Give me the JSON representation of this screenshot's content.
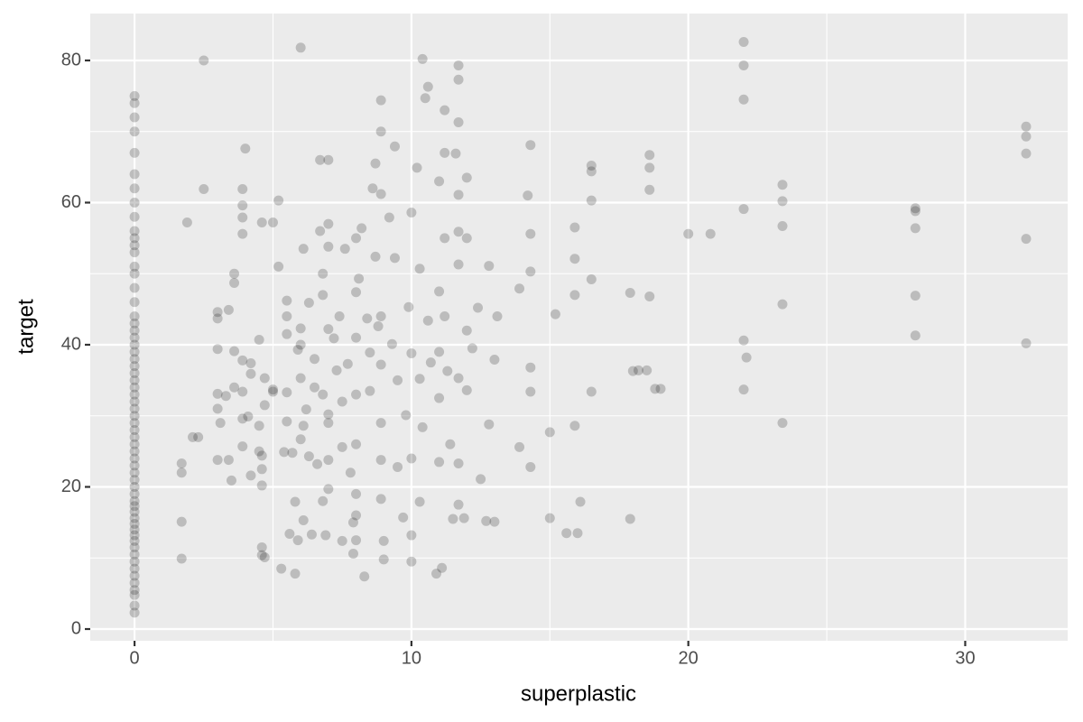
{
  "chart_data": {
    "type": "scatter",
    "x_label": "superplastic",
    "y_label": "target",
    "color": "#000000",
    "opacity": 0.2,
    "grid": true,
    "xlim": [
      -1.6,
      33.7
    ],
    "ylim": [
      -1.65,
      86.6
    ],
    "xticks": [
      0,
      10,
      20,
      30
    ],
    "yticks": [
      0,
      20,
      40,
      60,
      80
    ],
    "xminor": [
      5,
      15,
      25
    ],
    "yminor": [
      10,
      30,
      50,
      70
    ],
    "x": [
      0,
      0,
      0,
      0,
      0,
      0,
      0,
      0,
      0,
      0,
      0,
      0,
      0,
      0,
      0,
      0,
      0,
      0,
      0,
      0,
      0,
      0,
      0,
      0,
      0,
      0,
      0,
      0,
      0,
      0,
      0,
      0,
      0,
      0,
      0,
      0,
      0,
      0,
      0,
      0,
      0,
      0,
      0,
      0,
      0,
      0,
      0,
      0,
      0,
      0,
      0,
      0,
      0,
      0,
      0,
      0,
      0,
      0,
      0,
      0,
      0,
      1.7,
      1.7,
      1.7,
      1.7,
      1.9,
      2.1,
      2.3,
      2.5,
      2.5,
      3,
      3,
      3,
      3,
      3,
      3,
      3.1,
      3.3,
      3.4,
      3.4,
      3.5,
      3.6,
      3.6,
      3.6,
      3.6,
      3.9,
      3.9,
      3.9,
      3.9,
      3.9,
      3.9,
      3.9,
      3.9,
      4,
      4.1,
      4.2,
      4.2,
      4.2,
      4.5,
      4.5,
      4.5,
      4.6,
      4.6,
      4.6,
      4.6,
      4.6,
      4.6,
      4.7,
      4.7,
      4.7,
      5,
      5,
      5,
      5.2,
      5.2,
      5.3,
      5.4,
      5.5,
      5.5,
      5.5,
      5.5,
      5.5,
      5.6,
      5.7,
      5.8,
      5.8,
      5.9,
      5.9,
      6,
      6,
      6,
      6,
      6,
      6.1,
      6.1,
      6.1,
      6.2,
      6.3,
      6.3,
      6.4,
      6.5,
      6.5,
      6.6,
      6.7,
      6.7,
      6.8,
      6.8,
      6.8,
      6.8,
      6.9,
      7,
      7,
      7,
      7,
      7,
      7,
      7,
      7,
      7.2,
      7.3,
      7.4,
      7.5,
      7.5,
      7.5,
      7.6,
      7.7,
      7.8,
      7.9,
      7.9,
      8,
      8,
      8,
      8,
      8,
      8,
      8,
      8,
      8.1,
      8.2,
      8.3,
      8.4,
      8.5,
      8.5,
      8.6,
      8.7,
      8.7,
      8.8,
      8.9,
      8.9,
      8.9,
      8.9,
      8.9,
      8.9,
      8.9,
      8.9,
      9,
      9,
      9.2,
      9.3,
      9.4,
      9.4,
      9.5,
      9.5,
      9.7,
      9.8,
      9.9,
      10,
      10,
      10,
      10,
      10,
      10.2,
      10.3,
      10.3,
      10.3,
      10.4,
      10.4,
      10.5,
      10.6,
      10.6,
      10.7,
      10.9,
      11,
      11,
      11,
      11,
      11,
      11.1,
      11.2,
      11.2,
      11.2,
      11.2,
      11.3,
      11.4,
      11.5,
      11.6,
      11.7,
      11.7,
      11.7,
      11.7,
      11.7,
      11.7,
      11.7,
      11.7,
      11.7,
      11.9,
      12,
      12,
      12,
      12,
      12.2,
      12.4,
      12.5,
      12.7,
      12.8,
      12.8,
      13,
      13,
      13.1,
      13.9,
      13.9,
      14.2,
      14.3,
      14.3,
      14.3,
      14.3,
      14.3,
      14.3,
      15,
      15,
      15.2,
      15.6,
      15.9,
      15.9,
      15.9,
      15.9,
      16,
      16.1,
      16.5,
      16.5,
      16.5,
      16.5,
      16.5,
      17.9,
      17.9,
      18,
      18.2,
      18.5,
      18.6,
      18.6,
      18.6,
      18.6,
      18.8,
      19,
      20,
      20.8,
      22,
      22,
      22,
      22,
      22,
      22,
      22.1,
      23.4,
      23.4,
      23.4,
      23.4,
      23.4,
      28.2,
      28.2,
      28.2,
      28.2,
      28.2,
      32.2,
      32.2,
      32.2,
      32.2,
      32.2
    ],
    "values": [
      2.3,
      3.3,
      4.8,
      5.5,
      6.5,
      7.5,
      8.5,
      9.5,
      10.5,
      11.5,
      12.4,
      13.2,
      14,
      14.8,
      15.6,
      16.5,
      17.3,
      18,
      19,
      20,
      21,
      22,
      23,
      24,
      25,
      26,
      27,
      28,
      29,
      30,
      31,
      32,
      33,
      34,
      35,
      36,
      37,
      38,
      39,
      40,
      41,
      42,
      43,
      44,
      46,
      48,
      50,
      51,
      53,
      54,
      55,
      56,
      58,
      60,
      62,
      64,
      67,
      70,
      72,
      74,
      75,
      23.3,
      22,
      15.1,
      9.9,
      57.2,
      27,
      27,
      80,
      61.9,
      44.6,
      43.7,
      39.4,
      33.1,
      31,
      23.8,
      29,
      32.8,
      23.8,
      44.9,
      20.9,
      50,
      48.7,
      34,
      39.1,
      61.9,
      59.6,
      57.9,
      55.6,
      37.8,
      33.4,
      25.7,
      29.6,
      67.6,
      29.9,
      37.4,
      35.9,
      21.6,
      40.7,
      28.6,
      25,
      11.5,
      10.4,
      24.4,
      20.2,
      22.5,
      57.2,
      35.3,
      31.5,
      10.1,
      33.7,
      33.4,
      57.2,
      60.3,
      51,
      8.5,
      24.9,
      46.2,
      44,
      41.5,
      33.3,
      29.2,
      13.4,
      24.8,
      17.9,
      7.8,
      12.5,
      39.3,
      81.8,
      40,
      42.3,
      35.3,
      26.7,
      53.5,
      28.6,
      15.3,
      30.9,
      45.9,
      24.3,
      13.3,
      34,
      38,
      23.2,
      56,
      66,
      50,
      47,
      33,
      18,
      13.2,
      57,
      66,
      53.8,
      42.2,
      30.2,
      29,
      23.8,
      19.7,
      40.9,
      36.4,
      44,
      32,
      25.6,
      12.4,
      53.5,
      37.3,
      22,
      15,
      10.6,
      55,
      47.4,
      41,
      33,
      26,
      19,
      16,
      12.5,
      49.3,
      56.4,
      7.4,
      43.7,
      33.5,
      38.9,
      62,
      65.5,
      52.4,
      42.6,
      74.4,
      70,
      61.2,
      44,
      37.2,
      29,
      23.8,
      18.3,
      12.4,
      9.8,
      57.9,
      40.1,
      67.9,
      52.2,
      35,
      22.8,
      15.7,
      30.1,
      45.3,
      58.6,
      38.8,
      24,
      13.2,
      9.5,
      64.9,
      50.7,
      35.2,
      17.9,
      80.2,
      28.4,
      74.7,
      76.3,
      43.4,
      37.5,
      7.8,
      63,
      47.5,
      39,
      32.5,
      23.5,
      8.6,
      73,
      67,
      55,
      44,
      36.3,
      26,
      15.5,
      66.9,
      79.3,
      77.3,
      71.3,
      61.1,
      55.9,
      51.3,
      35.3,
      23.3,
      17.5,
      15.6,
      63.5,
      55,
      42,
      33.6,
      39.5,
      45.2,
      21.1,
      15.2,
      51.1,
      28.8,
      37.9,
      15.1,
      44,
      47.9,
      25.6,
      61,
      68.1,
      55.6,
      50.3,
      36.8,
      22.8,
      33.4,
      27.7,
      15.6,
      44.3,
      13.5,
      56.5,
      52.1,
      47,
      28.6,
      13.5,
      17.9,
      65.2,
      64.4,
      60.3,
      49.2,
      33.4,
      47.3,
      15.5,
      36.3,
      36.4,
      36.4,
      66.7,
      64.9,
      61.8,
      46.8,
      33.8,
      33.8,
      55.6,
      55.6,
      82.6,
      79.3,
      74.5,
      59.1,
      40.6,
      33.7,
      38.2,
      62.5,
      60.2,
      56.7,
      45.7,
      29,
      59.2,
      58.8,
      56.4,
      46.9,
      41.3,
      70.7,
      69.3,
      66.9,
      54.9,
      40.2
    ]
  }
}
